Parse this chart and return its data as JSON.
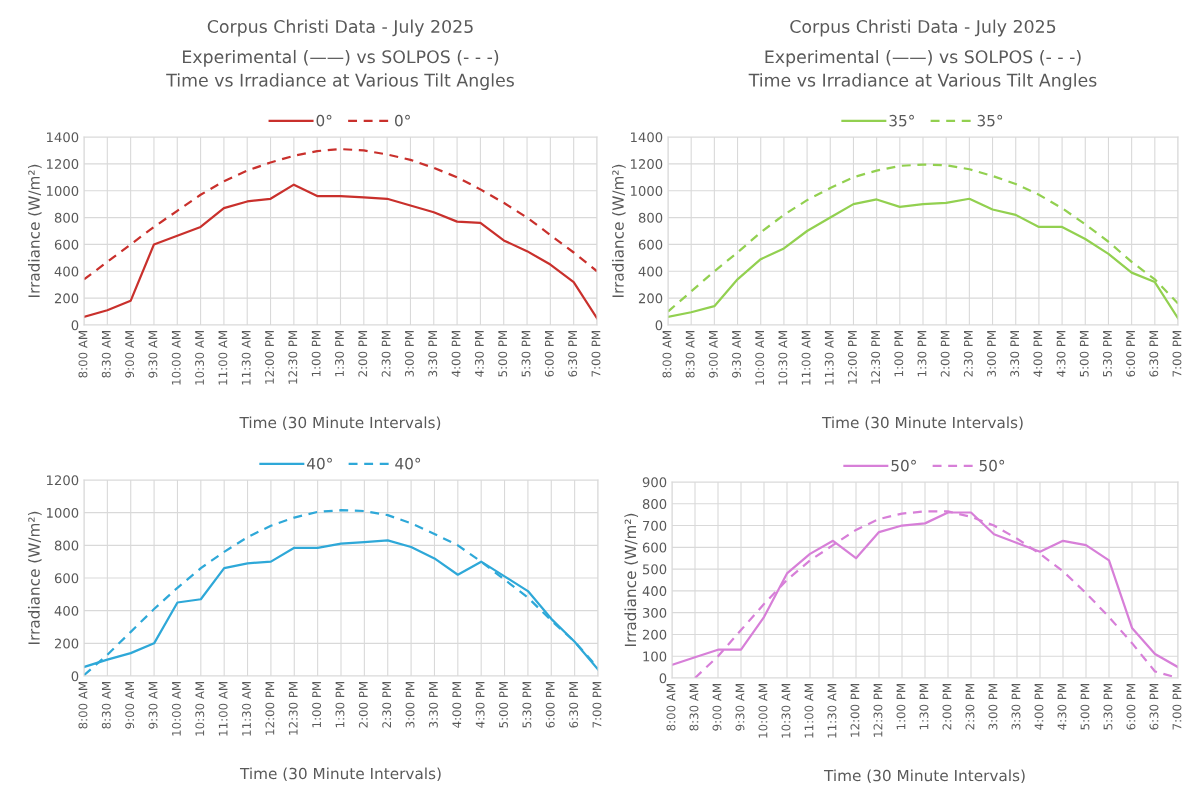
{
  "chart_data": [
    {
      "type": "line",
      "title": "Corpus Christi Data - July 2025",
      "subtitle": "Experimental (——) vs SOLPOS (- - -)\nTime vs Irradiance at Various Tilt Angles",
      "xlabel": "Time (30 Minute Intervals)",
      "ylabel": "Irradiance (W/m²)",
      "categories": [
        "8:00 AM",
        "8:30 AM",
        "9:00 AM",
        "9:30 AM",
        "10:00 AM",
        "10:30 AM",
        "11:00 AM",
        "11:30 AM",
        "12:00 PM",
        "12:30 PM",
        "1:00 PM",
        "1:30 PM",
        "2:00 PM",
        "2:30 PM",
        "3:00 PM",
        "3:30 PM",
        "4:00 PM",
        "4:30 PM",
        "5:00 PM",
        "5:30 PM",
        "6:00 PM",
        "6:30 PM",
        "7:00 PM"
      ],
      "series": [
        {
          "name": "0°",
          "color": "#c9302c",
          "line_style": "solid",
          "values": [
            60,
            110,
            180,
            600,
            665,
            730,
            870,
            920,
            940,
            1045,
            960,
            960,
            950,
            940,
            890,
            840,
            770,
            760,
            630,
            550,
            450,
            320,
            50
          ]
        },
        {
          "name": "0°",
          "color": "#c9302c",
          "line_style": "dashed",
          "values": [
            340,
            470,
            600,
            730,
            850,
            970,
            1070,
            1150,
            1210,
            1260,
            1295,
            1310,
            1300,
            1270,
            1230,
            1170,
            1100,
            1010,
            910,
            800,
            670,
            540,
            400
          ]
        }
      ],
      "ylim": [
        0,
        1400
      ],
      "yticks": [
        0,
        200,
        400,
        600,
        800,
        1000,
        1200,
        1400
      ],
      "grid": true,
      "legend": "top",
      "marker": "none"
    },
    {
      "type": "line",
      "title": "Corpus Christi Data - July 2025",
      "subtitle": "Experimental (——) vs SOLPOS (- - -)\nTime vs Irradiance at Various Tilt Angles",
      "xlabel": "Time (30 Minute Intervals)",
      "ylabel": "Irradiance (W/m²)",
      "categories": [
        "8:00 AM",
        "8:30 AM",
        "9:00 AM",
        "9:30 AM",
        "10:00 AM",
        "10:30 AM",
        "11:00 AM",
        "11:30 AM",
        "12:00 PM",
        "12:30 PM",
        "1:00 PM",
        "1:30 PM",
        "2:00 PM",
        "2:30 PM",
        "3:00 PM",
        "3:30 PM",
        "4:00 PM",
        "4:30 PM",
        "5:00 PM",
        "5:30 PM",
        "6:00 PM",
        "6:30 PM",
        "7:00 PM"
      ],
      "series": [
        {
          "name": "35°",
          "color": "#92d050",
          "line_style": "solid",
          "values": [
            60,
            95,
            140,
            340,
            490,
            570,
            700,
            800,
            900,
            935,
            880,
            900,
            910,
            940,
            860,
            820,
            730,
            730,
            640,
            530,
            390,
            320,
            50
          ]
        },
        {
          "name": "35°",
          "color": "#92d050",
          "line_style": "dashed",
          "values": [
            100,
            250,
            400,
            540,
            690,
            820,
            930,
            1020,
            1100,
            1150,
            1185,
            1195,
            1190,
            1160,
            1110,
            1050,
            970,
            870,
            750,
            620,
            470,
            340,
            160
          ]
        }
      ],
      "ylim": [
        0,
        1400
      ],
      "yticks": [
        0,
        200,
        400,
        600,
        800,
        1000,
        1200,
        1400
      ],
      "grid": true,
      "legend": "top",
      "marker": "none"
    },
    {
      "type": "line",
      "xlabel": "Time (30 Minute Intervals)",
      "ylabel": "Irradiance (W/m²)",
      "categories": [
        "8:00 AM",
        "8:30 AM",
        "9:00 AM",
        "9:30 AM",
        "10:00 AM",
        "10:30 AM",
        "11:00 AM",
        "11:30 AM",
        "12:00 PM",
        "12:30 PM",
        "1:00 PM",
        "1:30 PM",
        "2:00 PM",
        "2:30 PM",
        "3:00 PM",
        "3:30 PM",
        "4:00 PM",
        "4:30 PM",
        "5:00 PM",
        "5:30 PM",
        "6:00 PM",
        "6:30 PM",
        "7:00 PM"
      ],
      "series": [
        {
          "name": "40°",
          "color": "#2ea8d8",
          "line_style": "solid",
          "values": [
            55,
            100,
            140,
            200,
            450,
            470,
            660,
            690,
            700,
            785,
            785,
            810,
            820,
            830,
            790,
            720,
            620,
            700,
            610,
            520,
            350,
            210,
            40
          ]
        },
        {
          "name": "40°",
          "color": "#2ea8d8",
          "line_style": "dashed",
          "values": [
            5,
            130,
            270,
            410,
            540,
            660,
            760,
            850,
            920,
            970,
            1005,
            1015,
            1010,
            985,
            935,
            870,
            800,
            700,
            590,
            480,
            340,
            210,
            50
          ]
        }
      ],
      "ylim": [
        0,
        1200
      ],
      "yticks": [
        0,
        200,
        400,
        600,
        800,
        1000,
        1200
      ],
      "grid": true,
      "legend": "top",
      "marker": "none"
    },
    {
      "type": "line",
      "xlabel": "Time (30 Minute Intervals)",
      "ylabel": "Irradiance (W/m²)",
      "categories": [
        "8:00 AM",
        "8:30 AM",
        "9:00 AM",
        "9:30 AM",
        "10:00 AM",
        "10:30 AM",
        "11:00 AM",
        "11:30 AM",
        "12:00 PM",
        "12:30 PM",
        "1:00 PM",
        "1:30 PM",
        "2:00 PM",
        "2:30 PM",
        "3:00 PM",
        "3:30 PM",
        "4:00 PM",
        "4:30 PM",
        "5:00 PM",
        "5:30 PM",
        "6:00 PM",
        "6:30 PM",
        "7:00 PM"
      ],
      "series": [
        {
          "name": "50°",
          "color": "#d77fd8",
          "line_style": "solid",
          "values": [
            60,
            95,
            130,
            130,
            280,
            480,
            570,
            630,
            550,
            670,
            700,
            710,
            760,
            760,
            660,
            620,
            580,
            630,
            610,
            540,
            230,
            110,
            50
          ]
        },
        {
          "name": "50°",
          "color": "#d77fd8",
          "line_style": "dashed",
          "values": [
            null,
            0,
            100,
            220,
            340,
            450,
            540,
            610,
            680,
            730,
            755,
            765,
            765,
            740,
            700,
            640,
            570,
            490,
            390,
            280,
            160,
            30,
            0
          ]
        }
      ],
      "ylim": [
        0,
        900
      ],
      "yticks": [
        0,
        100,
        200,
        300,
        400,
        500,
        600,
        700,
        800,
        900
      ],
      "grid": true,
      "legend": "top",
      "marker": "none"
    }
  ]
}
